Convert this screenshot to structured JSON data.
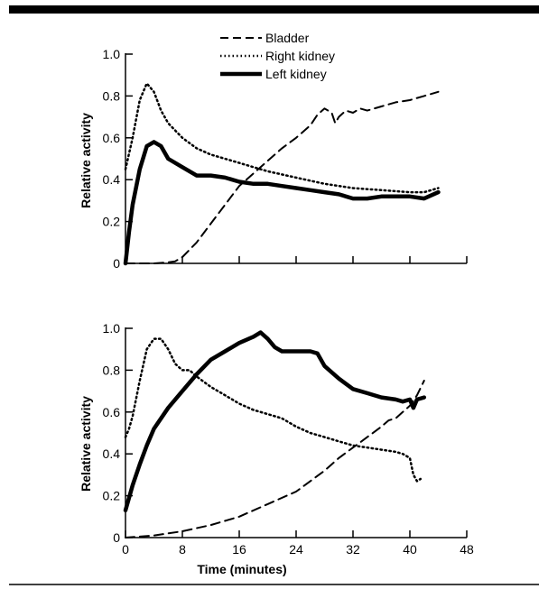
{
  "chart_data": [
    {
      "type": "line",
      "ylabel": "Relative activity",
      "xlabel": "",
      "xlim": [
        0,
        48
      ],
      "ylim": [
        0,
        1.0
      ],
      "x_ticks": [
        0,
        8,
        16,
        24,
        32,
        40,
        48
      ],
      "x_tick_labels_shown": false,
      "y_ticks": [
        0,
        0.2,
        0.4,
        0.6,
        0.8,
        1.0
      ],
      "y_tick_labels": [
        "0",
        "0.2",
        "0.4",
        "0.6",
        "0.8",
        "1.0"
      ],
      "legend": {
        "position": "top-center",
        "entries": [
          "Bladder",
          "Right kidney",
          "Left kidney"
        ]
      },
      "series": [
        {
          "name": "Bladder",
          "style": "dashed",
          "x": [
            0,
            2,
            4,
            6,
            7,
            8,
            10,
            12,
            14,
            16,
            18,
            20,
            22,
            24,
            26,
            27,
            28,
            29,
            29.5,
            30,
            31,
            32,
            33,
            34,
            35,
            36,
            38,
            40,
            42,
            44
          ],
          "y": [
            0,
            0,
            0,
            0.005,
            0.01,
            0.03,
            0.1,
            0.19,
            0.28,
            0.37,
            0.43,
            0.49,
            0.55,
            0.6,
            0.66,
            0.71,
            0.74,
            0.72,
            0.67,
            0.7,
            0.73,
            0.72,
            0.74,
            0.73,
            0.74,
            0.75,
            0.77,
            0.78,
            0.8,
            0.82
          ]
        },
        {
          "name": "Right kidney",
          "style": "dotted",
          "x": [
            0,
            1,
            2,
            3,
            4,
            5,
            6,
            8,
            10,
            12,
            14,
            16,
            18,
            20,
            24,
            28,
            32,
            36,
            40,
            42,
            44
          ],
          "y": [
            0.45,
            0.6,
            0.78,
            0.86,
            0.82,
            0.73,
            0.67,
            0.6,
            0.55,
            0.52,
            0.5,
            0.48,
            0.46,
            0.44,
            0.41,
            0.38,
            0.36,
            0.35,
            0.34,
            0.34,
            0.36
          ]
        },
        {
          "name": "Left kidney",
          "style": "solid",
          "x": [
            0,
            0.5,
            1,
            2,
            3,
            4,
            5,
            6,
            8,
            10,
            12,
            14,
            16,
            18,
            20,
            22,
            24,
            26,
            28,
            30,
            32,
            34,
            36,
            38,
            40,
            42,
            44
          ],
          "y": [
            0,
            0.15,
            0.28,
            0.45,
            0.56,
            0.58,
            0.56,
            0.5,
            0.46,
            0.42,
            0.42,
            0.41,
            0.39,
            0.38,
            0.38,
            0.37,
            0.36,
            0.35,
            0.34,
            0.33,
            0.31,
            0.31,
            0.32,
            0.32,
            0.32,
            0.31,
            0.34
          ]
        }
      ]
    },
    {
      "type": "line",
      "ylabel": "Relative activity",
      "xlabel": "Time (minutes)",
      "xlim": [
        0,
        48
      ],
      "ylim": [
        0,
        1.0
      ],
      "x_ticks": [
        0,
        8,
        16,
        24,
        32,
        40,
        48
      ],
      "x_tick_labels": [
        "0",
        "8",
        "16",
        "24",
        "32",
        "40",
        "48"
      ],
      "y_ticks": [
        0,
        0.2,
        0.4,
        0.6,
        0.8,
        1.0
      ],
      "y_tick_labels": [
        "0",
        "0.2",
        "0.4",
        "0.6",
        "0.8",
        "1.0"
      ],
      "series": [
        {
          "name": "Bladder",
          "style": "dashed",
          "x": [
            0,
            4,
            8,
            12,
            16,
            20,
            24,
            28,
            30,
            32,
            34,
            36,
            37,
            38,
            39,
            40,
            41,
            42
          ],
          "y": [
            0,
            0.01,
            0.03,
            0.06,
            0.1,
            0.16,
            0.22,
            0.32,
            0.38,
            0.43,
            0.48,
            0.53,
            0.56,
            0.57,
            0.6,
            0.63,
            0.68,
            0.75
          ]
        },
        {
          "name": "Right kidney",
          "style": "dotted",
          "x": [
            0,
            0.5,
            1,
            2,
            3,
            4,
            5,
            6,
            7,
            8,
            9,
            10,
            12,
            14,
            16,
            18,
            20,
            22,
            24,
            26,
            28,
            30,
            32,
            34,
            36,
            38,
            39,
            40,
            40.5,
            41,
            41.5
          ],
          "y": [
            0.48,
            0.52,
            0.58,
            0.75,
            0.9,
            0.95,
            0.95,
            0.9,
            0.83,
            0.8,
            0.8,
            0.77,
            0.72,
            0.68,
            0.64,
            0.61,
            0.59,
            0.57,
            0.53,
            0.5,
            0.48,
            0.46,
            0.44,
            0.43,
            0.42,
            0.41,
            0.4,
            0.38,
            0.3,
            0.27,
            0.28
          ]
        },
        {
          "name": "Left kidney",
          "style": "solid",
          "x": [
            0,
            1,
            2,
            3,
            4,
            6,
            8,
            10,
            12,
            14,
            16,
            18,
            19,
            20,
            21,
            22,
            24,
            26,
            27,
            28,
            30,
            32,
            34,
            36,
            38,
            39,
            40,
            40.5,
            41,
            42
          ],
          "y": [
            0.13,
            0.25,
            0.35,
            0.44,
            0.52,
            0.62,
            0.7,
            0.78,
            0.85,
            0.89,
            0.93,
            0.96,
            0.98,
            0.95,
            0.91,
            0.89,
            0.89,
            0.89,
            0.88,
            0.82,
            0.76,
            0.71,
            0.69,
            0.67,
            0.66,
            0.65,
            0.66,
            0.62,
            0.66,
            0.67
          ]
        }
      ]
    }
  ]
}
